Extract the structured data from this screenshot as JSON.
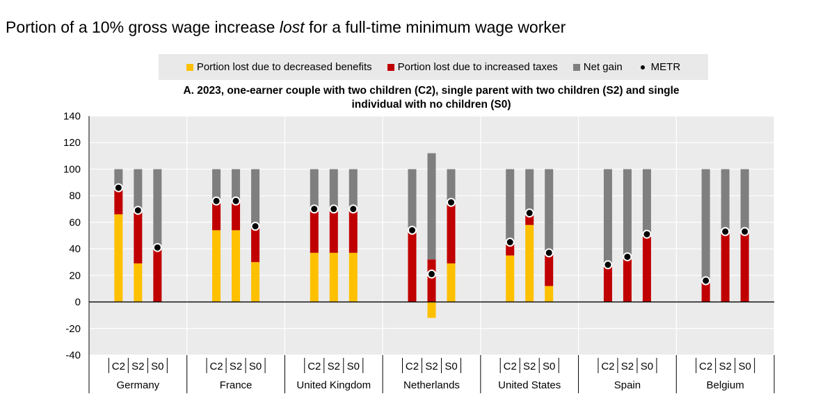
{
  "page_title_parts": {
    "before": "Portion of a 10% gross wage increase ",
    "italic": "lost",
    "after": " for a full-time minimum wage worker"
  },
  "legend": [
    {
      "label": "Portion lost due to decreased benefits",
      "color": "#FFC000",
      "kind": "swatch"
    },
    {
      "label": "Portion lost due to increased taxes",
      "color": "#C00000",
      "kind": "swatch"
    },
    {
      "label": "Net gain",
      "color": "#7F7F7F",
      "kind": "swatch"
    },
    {
      "label": "METR",
      "color": "#000000",
      "kind": "dot"
    }
  ],
  "chart_data": {
    "type": "bar",
    "subtitle_line1": "A. 2023, one-earner couple with two children (C2), single parent with two children (S2) and single",
    "subtitle_line2": "individual with no children (S0)",
    "ylim": [
      -40,
      140
    ],
    "yticks": [
      -40,
      -20,
      0,
      20,
      40,
      60,
      80,
      100,
      120,
      140
    ],
    "grid": true,
    "colors": {
      "benefits": "#FFC000",
      "taxes": "#C00000",
      "net_gain": "#7F7F7F",
      "metr": "#000000"
    },
    "groups": [
      {
        "country": "Germany",
        "bars": [
          {
            "label": "C2",
            "benefits": 66,
            "taxes": 18,
            "net_gain": 16,
            "metr": 86
          },
          {
            "label": "S2",
            "benefits": 29,
            "taxes": 39,
            "net_gain": 32,
            "metr": 69
          },
          {
            "label": "S0",
            "benefits": 0,
            "taxes": 40,
            "net_gain": 60,
            "metr": 41
          }
        ]
      },
      {
        "country": "France",
        "bars": [
          {
            "label": "C2",
            "benefits": 54,
            "taxes": 21,
            "net_gain": 25,
            "metr": 76
          },
          {
            "label": "S2",
            "benefits": 54,
            "taxes": 21,
            "net_gain": 25,
            "metr": 76
          },
          {
            "label": "S0",
            "benefits": 30,
            "taxes": 26,
            "net_gain": 44,
            "metr": 57
          }
        ]
      },
      {
        "country": "United Kingdom",
        "bars": [
          {
            "label": "C2",
            "benefits": 37,
            "taxes": 31,
            "net_gain": 32,
            "metr": 70
          },
          {
            "label": "S2",
            "benefits": 37,
            "taxes": 31,
            "net_gain": 32,
            "metr": 70
          },
          {
            "label": "S0",
            "benefits": 37,
            "taxes": 31,
            "net_gain": 32,
            "metr": 70
          }
        ]
      },
      {
        "country": "Netherlands",
        "bars": [
          {
            "label": "C2",
            "benefits": 0,
            "taxes": 52,
            "net_gain": 48,
            "metr": 54
          },
          {
            "label": "S2",
            "benefits": -12,
            "taxes": 32,
            "net_gain": 80,
            "metr": 21
          },
          {
            "label": "S0",
            "benefits": 29,
            "taxes": 45,
            "net_gain": 26,
            "metr": 75
          }
        ]
      },
      {
        "country": "United States",
        "bars": [
          {
            "label": "C2",
            "benefits": 35,
            "taxes": 8,
            "net_gain": 57,
            "metr": 45
          },
          {
            "label": "S2",
            "benefits": 58,
            "taxes": 7,
            "net_gain": 35,
            "metr": 67
          },
          {
            "label": "S0",
            "benefits": 12,
            "taxes": 24,
            "net_gain": 64,
            "metr": 37
          }
        ]
      },
      {
        "country": "Spain",
        "bars": [
          {
            "label": "C2",
            "benefits": 0,
            "taxes": 27,
            "net_gain": 73,
            "metr": 28
          },
          {
            "label": "S2",
            "benefits": 0,
            "taxes": 32,
            "net_gain": 68,
            "metr": 34
          },
          {
            "label": "S0",
            "benefits": 0,
            "taxes": 49,
            "net_gain": 51,
            "metr": 51
          }
        ]
      },
      {
        "country": "Belgium",
        "bars": [
          {
            "label": "C2",
            "benefits": 0,
            "taxes": 15,
            "net_gain": 85,
            "metr": 16
          },
          {
            "label": "S2",
            "benefits": 0,
            "taxes": 52,
            "net_gain": 48,
            "metr": 53
          },
          {
            "label": "S0",
            "benefits": 0,
            "taxes": 52,
            "net_gain": 48,
            "metr": 53
          }
        ]
      }
    ]
  }
}
